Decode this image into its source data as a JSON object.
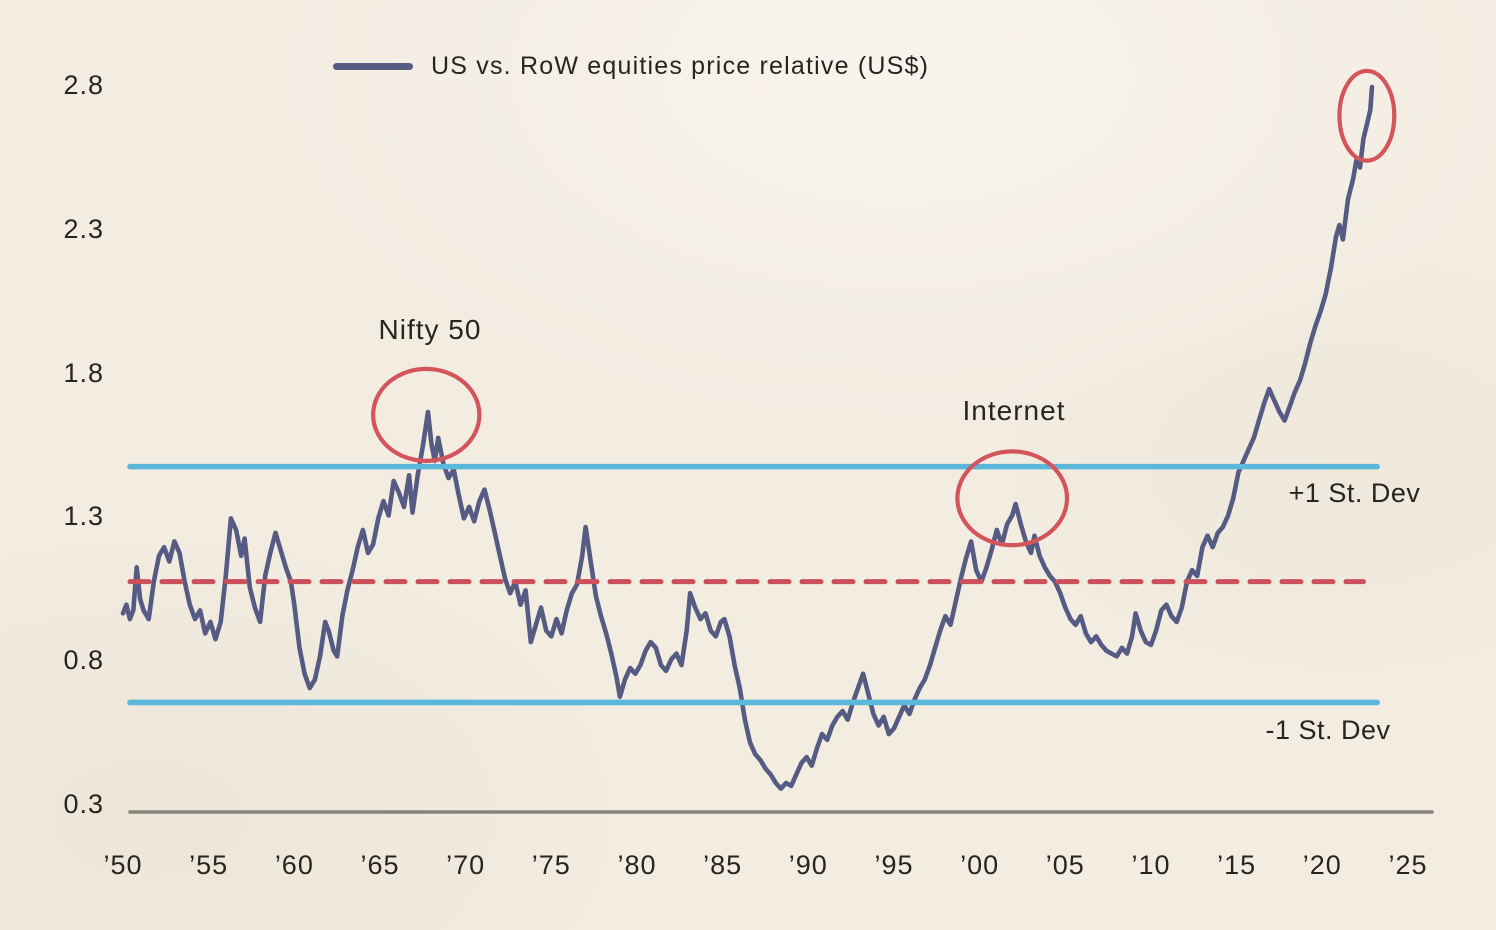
{
  "colors": {
    "background": "#f2ece1",
    "series": "#565b83",
    "std_dev_line": "#5cb8da",
    "mean_line": "#cc4f5c",
    "ellipse": "#d4545c",
    "axis_line": "#85837b",
    "text": "#262620"
  },
  "chart_data": {
    "type": "line",
    "title": "",
    "legend_position": "top",
    "grid": false,
    "series": [
      {
        "name": "US vs. RoW equities price relative (US$)",
        "color": "#565b83",
        "points": [
          [
            1950.0,
            0.97
          ],
          [
            1950.2,
            1.0
          ],
          [
            1950.4,
            0.95
          ],
          [
            1950.6,
            0.98
          ],
          [
            1950.8,
            1.13
          ],
          [
            1951.0,
            1.02
          ],
          [
            1951.2,
            0.98
          ],
          [
            1951.5,
            0.95
          ],
          [
            1951.8,
            1.08
          ],
          [
            1952.1,
            1.17
          ],
          [
            1952.4,
            1.2
          ],
          [
            1952.7,
            1.15
          ],
          [
            1953.0,
            1.22
          ],
          [
            1953.3,
            1.18
          ],
          [
            1953.6,
            1.08
          ],
          [
            1953.9,
            1.0
          ],
          [
            1954.2,
            0.95
          ],
          [
            1954.5,
            0.98
          ],
          [
            1954.8,
            0.9
          ],
          [
            1955.1,
            0.94
          ],
          [
            1955.4,
            0.88
          ],
          [
            1955.7,
            0.94
          ],
          [
            1956.0,
            1.1
          ],
          [
            1956.3,
            1.3
          ],
          [
            1956.6,
            1.26
          ],
          [
            1956.9,
            1.17
          ],
          [
            1957.1,
            1.23
          ],
          [
            1957.4,
            1.06
          ],
          [
            1957.7,
            0.99
          ],
          [
            1958.0,
            0.94
          ],
          [
            1958.3,
            1.1
          ],
          [
            1958.6,
            1.18
          ],
          [
            1958.9,
            1.25
          ],
          [
            1959.2,
            1.19
          ],
          [
            1959.5,
            1.13
          ],
          [
            1959.8,
            1.08
          ],
          [
            1960.0,
            1.0
          ],
          [
            1960.3,
            0.85
          ],
          [
            1960.6,
            0.76
          ],
          [
            1960.9,
            0.71
          ],
          [
            1961.2,
            0.74
          ],
          [
            1961.5,
            0.82
          ],
          [
            1961.8,
            0.94
          ],
          [
            1962.0,
            0.91
          ],
          [
            1962.3,
            0.84
          ],
          [
            1962.5,
            0.82
          ],
          [
            1962.8,
            0.96
          ],
          [
            1963.1,
            1.05
          ],
          [
            1963.4,
            1.12
          ],
          [
            1963.7,
            1.2
          ],
          [
            1964.0,
            1.26
          ],
          [
            1964.3,
            1.18
          ],
          [
            1964.6,
            1.21
          ],
          [
            1964.9,
            1.3
          ],
          [
            1965.2,
            1.36
          ],
          [
            1965.5,
            1.31
          ],
          [
            1965.8,
            1.43
          ],
          [
            1966.1,
            1.39
          ],
          [
            1966.4,
            1.34
          ],
          [
            1966.7,
            1.45
          ],
          [
            1966.9,
            1.32
          ],
          [
            1967.2,
            1.45
          ],
          [
            1967.5,
            1.55
          ],
          [
            1967.8,
            1.67
          ],
          [
            1968.0,
            1.56
          ],
          [
            1968.2,
            1.5
          ],
          [
            1968.4,
            1.58
          ],
          [
            1968.7,
            1.49
          ],
          [
            1969.0,
            1.44
          ],
          [
            1969.3,
            1.47
          ],
          [
            1969.6,
            1.38
          ],
          [
            1969.9,
            1.3
          ],
          [
            1970.2,
            1.34
          ],
          [
            1970.5,
            1.29
          ],
          [
            1970.8,
            1.36
          ],
          [
            1971.1,
            1.4
          ],
          [
            1971.4,
            1.33
          ],
          [
            1971.7,
            1.25
          ],
          [
            1972.0,
            1.17
          ],
          [
            1972.3,
            1.09
          ],
          [
            1972.6,
            1.04
          ],
          [
            1972.9,
            1.08
          ],
          [
            1973.2,
            1.0
          ],
          [
            1973.5,
            1.05
          ],
          [
            1973.8,
            0.87
          ],
          [
            1974.1,
            0.93
          ],
          [
            1974.4,
            0.99
          ],
          [
            1974.7,
            0.91
          ],
          [
            1975.0,
            0.89
          ],
          [
            1975.3,
            0.95
          ],
          [
            1975.6,
            0.9
          ],
          [
            1975.9,
            0.98
          ],
          [
            1976.2,
            1.04
          ],
          [
            1976.5,
            1.07
          ],
          [
            1976.8,
            1.17
          ],
          [
            1977.0,
            1.27
          ],
          [
            1977.3,
            1.15
          ],
          [
            1977.6,
            1.03
          ],
          [
            1977.9,
            0.96
          ],
          [
            1978.2,
            0.9
          ],
          [
            1978.5,
            0.83
          ],
          [
            1978.8,
            0.75
          ],
          [
            1979.0,
            0.68
          ],
          [
            1979.3,
            0.74
          ],
          [
            1979.6,
            0.78
          ],
          [
            1979.9,
            0.76
          ],
          [
            1980.2,
            0.79
          ],
          [
            1980.5,
            0.84
          ],
          [
            1980.8,
            0.87
          ],
          [
            1981.1,
            0.85
          ],
          [
            1981.4,
            0.79
          ],
          [
            1981.7,
            0.77
          ],
          [
            1982.0,
            0.81
          ],
          [
            1982.3,
            0.83
          ],
          [
            1982.6,
            0.79
          ],
          [
            1982.9,
            0.91
          ],
          [
            1983.1,
            1.04
          ],
          [
            1983.4,
            0.99
          ],
          [
            1983.7,
            0.95
          ],
          [
            1984.0,
            0.97
          ],
          [
            1984.3,
            0.91
          ],
          [
            1984.6,
            0.89
          ],
          [
            1984.9,
            0.94
          ],
          [
            1985.1,
            0.95
          ],
          [
            1985.4,
            0.89
          ],
          [
            1985.7,
            0.79
          ],
          [
            1986.0,
            0.71
          ],
          [
            1986.3,
            0.6
          ],
          [
            1986.6,
            0.52
          ],
          [
            1986.9,
            0.48
          ],
          [
            1987.2,
            0.46
          ],
          [
            1987.5,
            0.43
          ],
          [
            1987.8,
            0.41
          ],
          [
            1988.1,
            0.38
          ],
          [
            1988.4,
            0.36
          ],
          [
            1988.7,
            0.38
          ],
          [
            1989.0,
            0.37
          ],
          [
            1989.3,
            0.41
          ],
          [
            1989.6,
            0.45
          ],
          [
            1989.9,
            0.47
          ],
          [
            1990.2,
            0.44
          ],
          [
            1990.5,
            0.5
          ],
          [
            1990.8,
            0.55
          ],
          [
            1991.1,
            0.53
          ],
          [
            1991.4,
            0.58
          ],
          [
            1991.7,
            0.61
          ],
          [
            1992.0,
            0.63
          ],
          [
            1992.3,
            0.6
          ],
          [
            1992.6,
            0.66
          ],
          [
            1992.9,
            0.71
          ],
          [
            1993.2,
            0.76
          ],
          [
            1993.5,
            0.69
          ],
          [
            1993.8,
            0.62
          ],
          [
            1994.1,
            0.58
          ],
          [
            1994.4,
            0.61
          ],
          [
            1994.7,
            0.55
          ],
          [
            1995.0,
            0.57
          ],
          [
            1995.3,
            0.61
          ],
          [
            1995.6,
            0.65
          ],
          [
            1995.9,
            0.62
          ],
          [
            1996.2,
            0.67
          ],
          [
            1996.5,
            0.71
          ],
          [
            1996.8,
            0.74
          ],
          [
            1997.1,
            0.79
          ],
          [
            1997.4,
            0.85
          ],
          [
            1997.7,
            0.91
          ],
          [
            1998.0,
            0.96
          ],
          [
            1998.3,
            0.93
          ],
          [
            1998.6,
            1.01
          ],
          [
            1998.9,
            1.09
          ],
          [
            1999.2,
            1.16
          ],
          [
            1999.5,
            1.22
          ],
          [
            1999.8,
            1.12
          ],
          [
            2000.1,
            1.08
          ],
          [
            2000.4,
            1.13
          ],
          [
            2000.7,
            1.19
          ],
          [
            2001.0,
            1.26
          ],
          [
            2001.3,
            1.21
          ],
          [
            2001.6,
            1.28
          ],
          [
            2001.9,
            1.31
          ],
          [
            2002.1,
            1.35
          ],
          [
            2002.4,
            1.28
          ],
          [
            2002.7,
            1.22
          ],
          [
            2003.0,
            1.18
          ],
          [
            2003.2,
            1.24
          ],
          [
            2003.5,
            1.17
          ],
          [
            2003.8,
            1.13
          ],
          [
            2004.1,
            1.1
          ],
          [
            2004.4,
            1.08
          ],
          [
            2004.7,
            1.04
          ],
          [
            2005.0,
            0.99
          ],
          [
            2005.3,
            0.95
          ],
          [
            2005.6,
            0.93
          ],
          [
            2005.9,
            0.96
          ],
          [
            2006.2,
            0.9
          ],
          [
            2006.5,
            0.87
          ],
          [
            2006.8,
            0.89
          ],
          [
            2007.1,
            0.86
          ],
          [
            2007.4,
            0.84
          ],
          [
            2007.7,
            0.83
          ],
          [
            2008.0,
            0.82
          ],
          [
            2008.3,
            0.85
          ],
          [
            2008.6,
            0.83
          ],
          [
            2008.9,
            0.89
          ],
          [
            2009.1,
            0.97
          ],
          [
            2009.4,
            0.91
          ],
          [
            2009.7,
            0.87
          ],
          [
            2010.0,
            0.86
          ],
          [
            2010.3,
            0.91
          ],
          [
            2010.6,
            0.98
          ],
          [
            2010.9,
            1.0
          ],
          [
            2011.2,
            0.96
          ],
          [
            2011.5,
            0.94
          ],
          [
            2011.8,
            0.99
          ],
          [
            2012.1,
            1.08
          ],
          [
            2012.4,
            1.12
          ],
          [
            2012.7,
            1.1
          ],
          [
            2013.0,
            1.2
          ],
          [
            2013.3,
            1.24
          ],
          [
            2013.6,
            1.2
          ],
          [
            2013.9,
            1.25
          ],
          [
            2014.2,
            1.27
          ],
          [
            2014.5,
            1.31
          ],
          [
            2014.8,
            1.37
          ],
          [
            2015.1,
            1.46
          ],
          [
            2015.4,
            1.5
          ],
          [
            2015.7,
            1.54
          ],
          [
            2016.0,
            1.58
          ],
          [
            2016.3,
            1.64
          ],
          [
            2016.6,
            1.7
          ],
          [
            2016.9,
            1.75
          ],
          [
            2017.2,
            1.71
          ],
          [
            2017.5,
            1.67
          ],
          [
            2017.8,
            1.64
          ],
          [
            2018.1,
            1.69
          ],
          [
            2018.4,
            1.74
          ],
          [
            2018.7,
            1.78
          ],
          [
            2019.0,
            1.84
          ],
          [
            2019.3,
            1.91
          ],
          [
            2019.6,
            1.97
          ],
          [
            2019.9,
            2.02
          ],
          [
            2020.2,
            2.08
          ],
          [
            2020.5,
            2.17
          ],
          [
            2020.8,
            2.28
          ],
          [
            2021.0,
            2.32
          ],
          [
            2021.2,
            2.27
          ],
          [
            2021.5,
            2.41
          ],
          [
            2021.8,
            2.48
          ],
          [
            2022.0,
            2.55
          ],
          [
            2022.2,
            2.52
          ],
          [
            2022.4,
            2.62
          ],
          [
            2022.6,
            2.67
          ],
          [
            2022.8,
            2.72
          ],
          [
            2022.9,
            2.8
          ]
        ]
      }
    ],
    "reference_lines": [
      {
        "name": "+1 St. Dev",
        "value": 1.48,
        "color": "#5cb8da",
        "style": "solid",
        "end_year": 2023.2
      },
      {
        "name": "",
        "role": "mean",
        "value": 1.08,
        "color": "#cc4f5c",
        "style": "dashed",
        "end_year": 2022.4
      },
      {
        "name": "-1 St. Dev",
        "value": 0.66,
        "color": "#5cb8da",
        "style": "solid",
        "end_year": 2023.2
      }
    ],
    "annotations": {
      "ellipses": [
        {
          "label": "Nifty 50",
          "center_year": 1967.7,
          "center_value": 1.66,
          "rx_years": 3.1,
          "ry_value": 0.16
        },
        {
          "label": "Internet",
          "center_year": 2001.9,
          "center_value": 1.37,
          "rx_years": 3.2,
          "ry_value": 0.163
        },
        {
          "label": "",
          "center_year": 2022.6,
          "center_value": 2.7,
          "rx_years": 1.6,
          "ry_value": 0.156
        }
      ]
    },
    "x_axis": {
      "range": [
        1950,
        2025
      ],
      "ticks": [
        {
          "label": "’50",
          "year": 1950
        },
        {
          "label": "’55",
          "year": 1955
        },
        {
          "label": "’60",
          "year": 1960
        },
        {
          "label": "’65",
          "year": 1965
        },
        {
          "label": "’70",
          "year": 1970
        },
        {
          "label": "’75",
          "year": 1975
        },
        {
          "label": "’80",
          "year": 1980
        },
        {
          "label": "’85",
          "year": 1985
        },
        {
          "label": "’90",
          "year": 1990
        },
        {
          "label": "’95",
          "year": 1995
        },
        {
          "label": "’00",
          "year": 2000
        },
        {
          "label": "’05",
          "year": 2005
        },
        {
          "label": "’10",
          "year": 2010
        },
        {
          "label": "’15",
          "year": 2015
        },
        {
          "label": "’20",
          "year": 2020
        },
        {
          "label": "’25",
          "year": 2025
        }
      ]
    },
    "y_axis": {
      "range": [
        0.3,
        2.8
      ],
      "ticks": [
        {
          "label": "0.3",
          "value": 0.3
        },
        {
          "label": "0.8",
          "value": 0.8
        },
        {
          "label": "1.3",
          "value": 1.3
        },
        {
          "label": "1.8",
          "value": 1.8
        },
        {
          "label": "2.3",
          "value": 2.3
        },
        {
          "label": "2.8",
          "value": 2.8
        }
      ]
    }
  }
}
